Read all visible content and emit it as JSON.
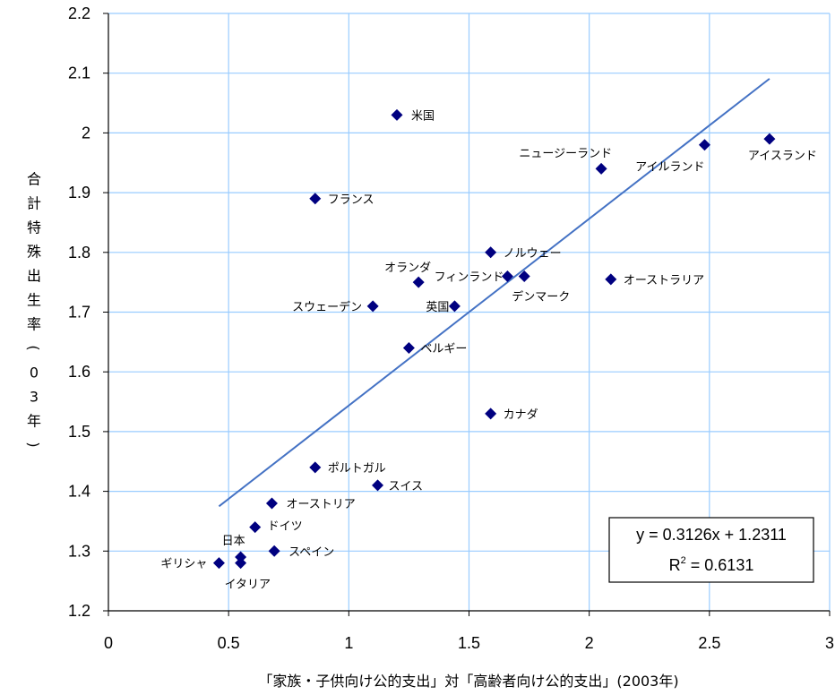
{
  "chart_data": {
    "type": "scatter",
    "xlabel": "「家族・子供向け公的支出」対「高齢者向け公的支出」(2003年)",
    "ylabel": "合計特殊出生率(03年)",
    "xlim": [
      0,
      3
    ],
    "ylim": [
      1.2,
      2.2
    ],
    "x_ticks": [
      "0",
      "0.5",
      "1",
      "1.5",
      "2",
      "2.5",
      "3"
    ],
    "y_ticks": [
      "1.2",
      "1.3",
      "1.4",
      "1.5",
      "1.6",
      "1.7",
      "1.8",
      "1.9",
      "2",
      "2.1",
      "2.2"
    ],
    "grid": true,
    "marker_color": "#000080",
    "trendline_color": "#4472C4",
    "grid_color": "#99CCFF",
    "points": [
      {
        "label": "米国",
        "x": 1.2,
        "y": 2.03
      },
      {
        "label": "ニュージーランド",
        "x": 2.05,
        "y": 1.94
      },
      {
        "label": "アイルランド",
        "x": 2.48,
        "y": 1.98
      },
      {
        "label": "アイスランド",
        "x": 2.75,
        "y": 1.99
      },
      {
        "label": "フランス",
        "x": 0.86,
        "y": 1.89
      },
      {
        "label": "ノルウェー",
        "x": 1.59,
        "y": 1.8
      },
      {
        "label": "オランダ",
        "x": 1.29,
        "y": 1.75
      },
      {
        "label": "フィンランド",
        "x": 1.66,
        "y": 1.76
      },
      {
        "label": "デンマーク",
        "x": 1.73,
        "y": 1.76
      },
      {
        "label": "オーストラリア",
        "x": 2.09,
        "y": 1.755
      },
      {
        "label": "スウェーデン",
        "x": 1.1,
        "y": 1.71
      },
      {
        "label": "英国",
        "x": 1.44,
        "y": 1.71
      },
      {
        "label": "ベルギー",
        "x": 1.25,
        "y": 1.64
      },
      {
        "label": "カナダ",
        "x": 1.59,
        "y": 1.53
      },
      {
        "label": "ポルトガル",
        "x": 0.86,
        "y": 1.44
      },
      {
        "label": "スイス",
        "x": 1.12,
        "y": 1.41
      },
      {
        "label": "オーストリア",
        "x": 0.68,
        "y": 1.38
      },
      {
        "label": "ドイツ",
        "x": 0.61,
        "y": 1.34
      },
      {
        "label": "日本",
        "x": 0.55,
        "y": 1.29
      },
      {
        "label": "スペイン",
        "x": 0.69,
        "y": 1.3
      },
      {
        "label": "ギリシャ",
        "x": 0.46,
        "y": 1.28
      },
      {
        "label": "イタリア",
        "x": 0.55,
        "y": 1.28
      }
    ],
    "trendline": {
      "slope": 0.3126,
      "intercept": 1.2311,
      "x_range": [
        0.46,
        2.75
      ],
      "equation": "y = 0.3126x + 1.2311",
      "r2_label": "R",
      "r2_sup": "2",
      "r2_value": " = 0.6131"
    }
  }
}
